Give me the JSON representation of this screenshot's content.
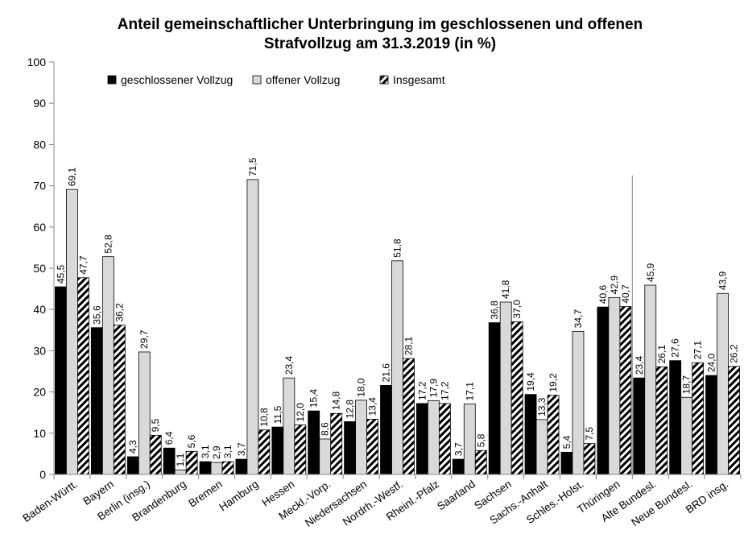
{
  "chart_data": {
    "type": "bar",
    "title_lines": [
      "Anteil gemeinschaftlicher Unterbringung im geschlossenen und offenen",
      "Strafvollzug am 31.3.2019 (in %)"
    ],
    "xlabel": "",
    "ylabel": "",
    "ylim": [
      0,
      100
    ],
    "y_ticks": [
      "0",
      "10",
      "20",
      "30",
      "40",
      "50",
      "60",
      "70",
      "80",
      "90",
      "100"
    ],
    "grid": false,
    "legend_position": "top-left",
    "categories": [
      "Baden-Württ.",
      "Bayern",
      "Berlin (insg.)",
      "Brandenburg",
      "Bremen",
      "Hamburg",
      "Hessen",
      "Meckl.-Vorp.",
      "Niedersachsen",
      "Nordrh.-Westf.",
      "Rheinl.-Pfalz",
      "Saarland",
      "Sachsen",
      "Sachs.-Anhalt",
      "Schles.-Holst.",
      "Thüringen",
      "Alte Bundesl.",
      "Neue Bundesl.",
      "BRD insg."
    ],
    "series": [
      {
        "name": "geschlossener Vollzug",
        "fill": "#000000",
        "values": [
          45.5,
          35.6,
          4.3,
          6.4,
          3.1,
          3.7,
          11.5,
          15.4,
          12.8,
          21.6,
          17.2,
          3.7,
          36.8,
          19.4,
          5.4,
          40.6,
          23.4,
          27.6,
          24.0
        ],
        "labels": [
          "45,5",
          "35,6",
          "4,3",
          "6,4",
          "3,1",
          "3,7",
          "11,5",
          "15,4",
          "12,8",
          "21,6",
          "17,2",
          "3,7",
          "36,8",
          "19,4",
          "5,4",
          "40,6",
          "23,4",
          "27,6",
          "24,0"
        ]
      },
      {
        "name": "offener Vollzug",
        "fill": "#d9d9d9",
        "values": [
          69.1,
          52.8,
          29.7,
          1.1,
          2.9,
          71.5,
          23.4,
          8.6,
          18.0,
          51.8,
          17.9,
          17.1,
          41.8,
          13.3,
          34.7,
          42.9,
          45.9,
          18.7,
          43.9
        ],
        "labels": [
          "69,1",
          "52,8",
          "29,7",
          "1,1",
          "2,9",
          "71,5",
          "23,4",
          "8,6",
          "18,0",
          "51,8",
          "17,9",
          "17,1",
          "41,8",
          "13,3",
          "34,7",
          "42,9",
          "45,9",
          "18,7",
          "43,9"
        ]
      },
      {
        "name": "Insgesamt",
        "fill": "hatch",
        "values": [
          47.7,
          36.2,
          9.5,
          5.6,
          3.1,
          10.8,
          12.0,
          14.8,
          13.4,
          28.1,
          17.2,
          5.8,
          37.0,
          19.2,
          7.5,
          40.7,
          26.1,
          27.1,
          26.2
        ],
        "labels": [
          "47,7",
          "36,2",
          "9,5",
          "5,6",
          "3,1",
          "10,8",
          "12,0",
          "14,8",
          "13,4",
          "28,1",
          "17,2",
          "5,8",
          "37,0",
          "19,2",
          "7,5",
          "40,7",
          "26,1",
          "27,1",
          "26,2"
        ]
      }
    ],
    "separator_after_category": "Thüringen"
  }
}
